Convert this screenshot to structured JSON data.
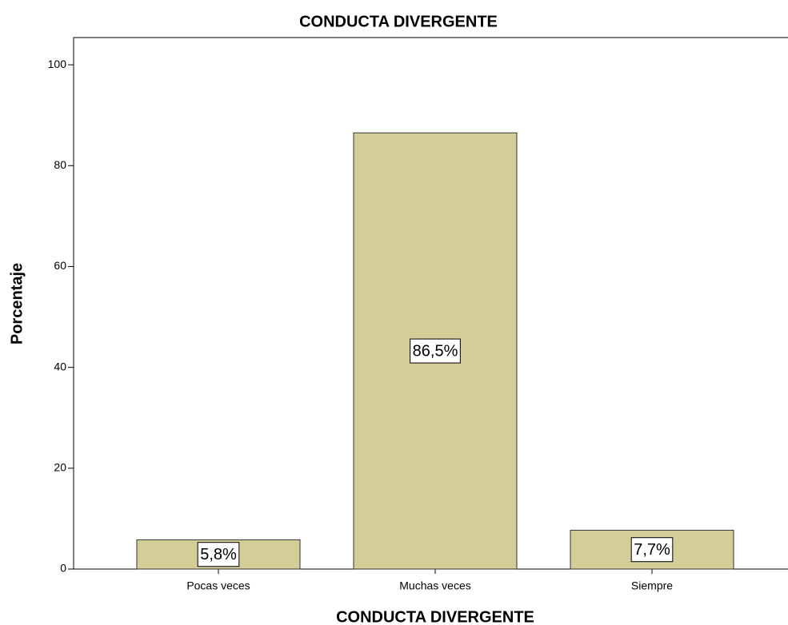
{
  "chart_data": {
    "type": "bar",
    "title": "CONDUCTA DIVERGENTE",
    "x_label": "CONDUCTA DIVERGENTE",
    "y_label": "Porcentaje",
    "categories": [
      "Pocas veces",
      "Muchas veces",
      "Siempre"
    ],
    "values": [
      5.8,
      86.5,
      7.7
    ],
    "value_labels": [
      "5,8%",
      "86,5%",
      "7,7%"
    ],
    "color": "#d3ce97",
    "ylim": [
      0,
      105.4
    ],
    "yticks": [
      0,
      20,
      40,
      60,
      80,
      100
    ],
    "grid": false
  }
}
